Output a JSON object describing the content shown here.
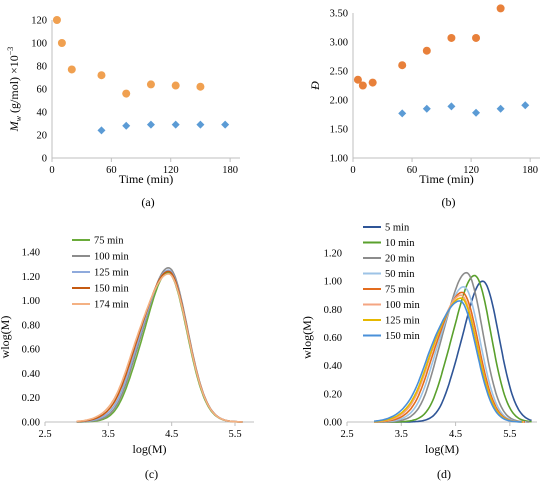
{
  "chart_data": [
    {
      "id": "a",
      "type": "scatter",
      "caption": "(a)",
      "xlabel": "Time (min)",
      "ylabel_parts": [
        "M",
        "w",
        " (g/mol) ×10",
        "−3"
      ],
      "xlim": [
        0,
        190
      ],
      "ylim": [
        0,
        120
      ],
      "xticks": [
        "0",
        "60",
        "120",
        "180"
      ],
      "yticks": [
        "0",
        "20",
        "40",
        "60",
        "80",
        "100",
        "120"
      ],
      "series": [
        {
          "color": "#f0a050",
          "marker": "circle",
          "x": [
            5,
            10,
            20,
            50,
            75,
            100,
            125,
            150
          ],
          "y": [
            120,
            100,
            77,
            72,
            56,
            64,
            63,
            62
          ]
        },
        {
          "color": "#5b9bd5",
          "marker": "diamond",
          "x": [
            50,
            75,
            100,
            125,
            150,
            175
          ],
          "y": [
            24,
            28,
            29,
            29,
            29,
            29
          ]
        }
      ]
    },
    {
      "id": "b",
      "type": "scatter",
      "caption": "(b)",
      "xlabel": "Time (min)",
      "ylabel": "Đ",
      "xlim": [
        0,
        190
      ],
      "ylim": [
        1.0,
        3.5
      ],
      "xticks": [
        "0",
        "60",
        "120",
        "180"
      ],
      "yticks": [
        "1.00",
        "1.50",
        "2.00",
        "2.50",
        "3.00",
        "3.50"
      ],
      "series": [
        {
          "color": "#e8803a",
          "marker": "circle",
          "x": [
            5,
            10,
            20,
            50,
            75,
            100,
            125,
            150
          ],
          "y": [
            2.35,
            2.25,
            2.3,
            2.6,
            2.85,
            3.07,
            3.07,
            3.58
          ]
        },
        {
          "color": "#5b9bd5",
          "marker": "diamond",
          "x": [
            50,
            75,
            100,
            125,
            150,
            175
          ],
          "y": [
            1.77,
            1.85,
            1.89,
            1.78,
            1.85,
            1.91
          ]
        }
      ]
    },
    {
      "id": "c",
      "type": "line",
      "caption": "(c)",
      "xlabel": "log(M)",
      "ylabel": "wlog(M)",
      "xlim": [
        2.5,
        5.8
      ],
      "ylim": [
        0,
        1.4
      ],
      "xticks": [
        "2.5",
        "3.5",
        "4.5",
        "5.5"
      ],
      "yticks": [
        "0.00",
        "0.20",
        "0.40",
        "0.60",
        "0.80",
        "1.00",
        "1.20",
        "1.40"
      ],
      "series": [
        {
          "name": "75 min",
          "color": "#6aab3a",
          "peak": 1.23,
          "mu": 4.44
        },
        {
          "name": "100 min",
          "color": "#8c8c8c",
          "peak": 1.27,
          "mu": 4.45
        },
        {
          "name": "125 min",
          "color": "#8faadc",
          "peak": 1.25,
          "mu": 4.45
        },
        {
          "name": "150 min",
          "color": "#c55a11",
          "peak": 1.24,
          "mu": 4.45
        },
        {
          "name": "174 min",
          "color": "#f4b183",
          "peak": 1.22,
          "mu": 4.45
        }
      ]
    },
    {
      "id": "d",
      "type": "line",
      "caption": "(d)",
      "xlabel": "log(M)",
      "ylabel": "wlog(M)",
      "xlim": [
        2.5,
        6.0
      ],
      "ylim": [
        0,
        1.2
      ],
      "xticks": [
        "2.5",
        "3.5",
        "4.5",
        "5.5"
      ],
      "yticks": [
        "0.00",
        "0.20",
        "0.40",
        "0.60",
        "0.80",
        "1.00",
        "1.20"
      ],
      "series": [
        {
          "name": "5 min",
          "color": "#2f5597",
          "peak": 1.0,
          "mu": 5.0
        },
        {
          "name": "10 min",
          "color": "#5aa02c",
          "peak": 1.04,
          "mu": 4.85
        },
        {
          "name": "20 min",
          "color": "#8c8c8c",
          "peak": 1.06,
          "mu": 4.7
        },
        {
          "name": "50 min",
          "color": "#9dc3e6",
          "peak": 0.96,
          "mu": 4.65
        },
        {
          "name": "75 min",
          "color": "#e36c1e",
          "peak": 0.92,
          "mu": 4.62
        },
        {
          "name": "100 min",
          "color": "#f4a582",
          "peak": 0.9,
          "mu": 4.6
        },
        {
          "name": "125 min",
          "color": "#e6b800",
          "peak": 0.88,
          "mu": 4.6
        },
        {
          "name": "150 min",
          "color": "#4a90d9",
          "peak": 0.86,
          "mu": 4.58
        }
      ]
    }
  ]
}
